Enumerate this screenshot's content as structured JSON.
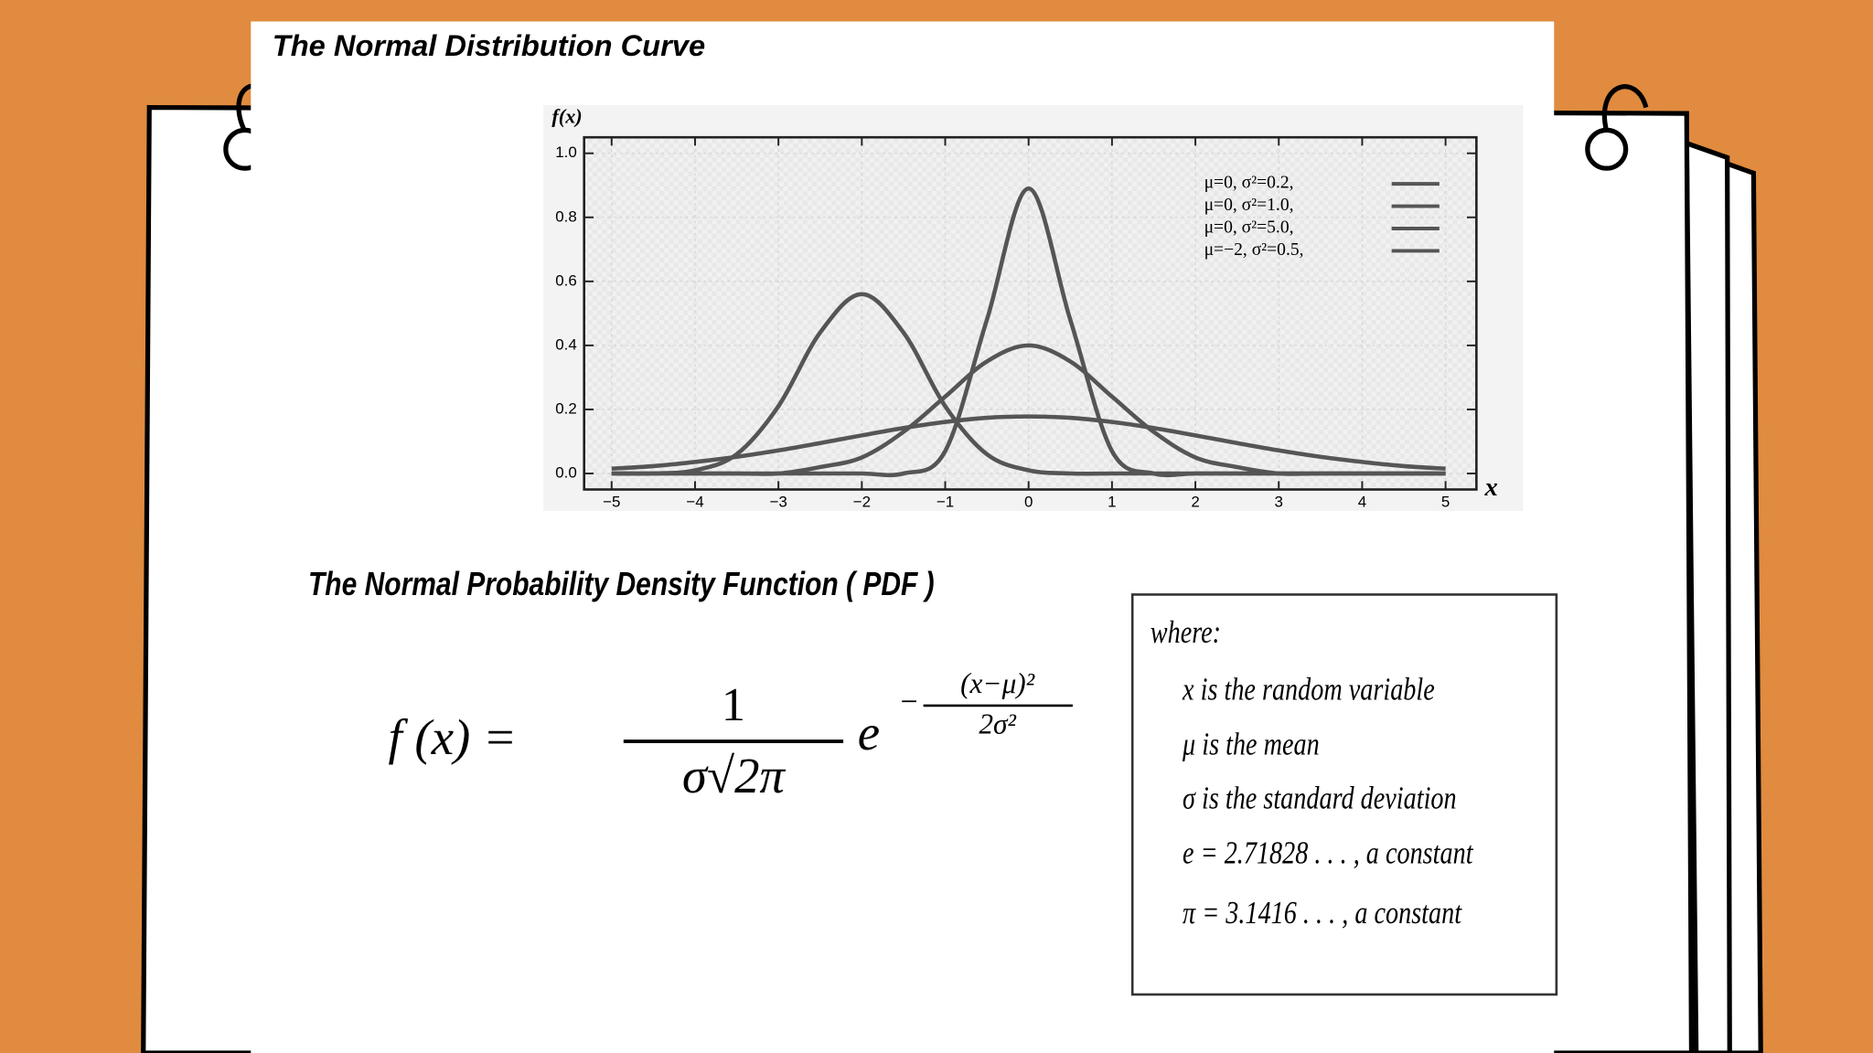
{
  "header": {
    "title": "The Normal Distribution Curve"
  },
  "chart_data": {
    "type": "line",
    "y_label": "f(x)",
    "x_label": "x",
    "x": [
      -5,
      -4.5,
      -4,
      -3.5,
      -3,
      -2.5,
      -2,
      -1.5,
      -1,
      -0.5,
      0,
      0.5,
      1,
      1.5,
      2,
      2.5,
      3,
      3.5,
      4,
      4.5,
      5
    ],
    "series": [
      {
        "name": "μ=0,    σ²=0.2,",
        "color": "#555555",
        "values": [
          0,
          0,
          0,
          0,
          0,
          0,
          0,
          0,
          0.07,
          0.48,
          0.89,
          0.48,
          0.07,
          0,
          0,
          0,
          0,
          0,
          0,
          0,
          0
        ]
      },
      {
        "name": "μ=0,    σ²=1.0,",
        "color": "#555555",
        "values": [
          0,
          0,
          0,
          0,
          0,
          0.02,
          0.05,
          0.13,
          0.24,
          0.35,
          0.4,
          0.35,
          0.24,
          0.13,
          0.05,
          0.02,
          0,
          0,
          0,
          0,
          0
        ]
      },
      {
        "name": "μ=0,    σ²=5.0,",
        "color": "#555555",
        "values": [
          0.015,
          0.023,
          0.036,
          0.052,
          0.072,
          0.095,
          0.119,
          0.142,
          0.161,
          0.174,
          0.178,
          0.174,
          0.161,
          0.142,
          0.119,
          0.095,
          0.072,
          0.052,
          0.036,
          0.023,
          0.015
        ]
      },
      {
        "name": "μ=−2,  σ²=0.5,",
        "color": "#555555",
        "values": [
          0,
          0,
          0.01,
          0.06,
          0.21,
          0.44,
          0.56,
          0.44,
          0.21,
          0.06,
          0.01,
          0,
          0,
          0,
          0,
          0,
          0,
          0,
          0,
          0,
          0
        ]
      }
    ],
    "xlim": [
      -5.33,
      5.37
    ],
    "ylim": [
      -0.05,
      1.05
    ],
    "xticks": [
      {
        "value": -5,
        "label": "−5"
      },
      {
        "value": -4,
        "label": "−4"
      },
      {
        "value": -3,
        "label": "−3"
      },
      {
        "value": -2,
        "label": "−2"
      },
      {
        "value": -1,
        "label": "−1"
      },
      0,
      1,
      2,
      3,
      4,
      5
    ],
    "yticks": [
      {
        "value": 0,
        "label": "0.0"
      },
      0.2,
      0.4,
      0.6,
      0.8,
      {
        "value": 1,
        "label": "1.0"
      }
    ],
    "grid": true,
    "legend": "upper right"
  },
  "pdf": {
    "heading": "The Normal Probability Density Function ( PDF )",
    "lhs": "f (x) =",
    "numerator": "1",
    "denominator": "σ√2π",
    "base": "e",
    "exponent_sign": "−",
    "exponent_numerator": "(x−μ)²",
    "exponent_denominator": "2σ²"
  },
  "where_box": {
    "lines": [
      "where:",
      "x  is the random variable",
      "μ  is the mean",
      "σ is the standard deviation",
      "e  =  2.71828 . . . , a constant",
      "π  =  3.1416 . . . , a constant"
    ]
  }
}
